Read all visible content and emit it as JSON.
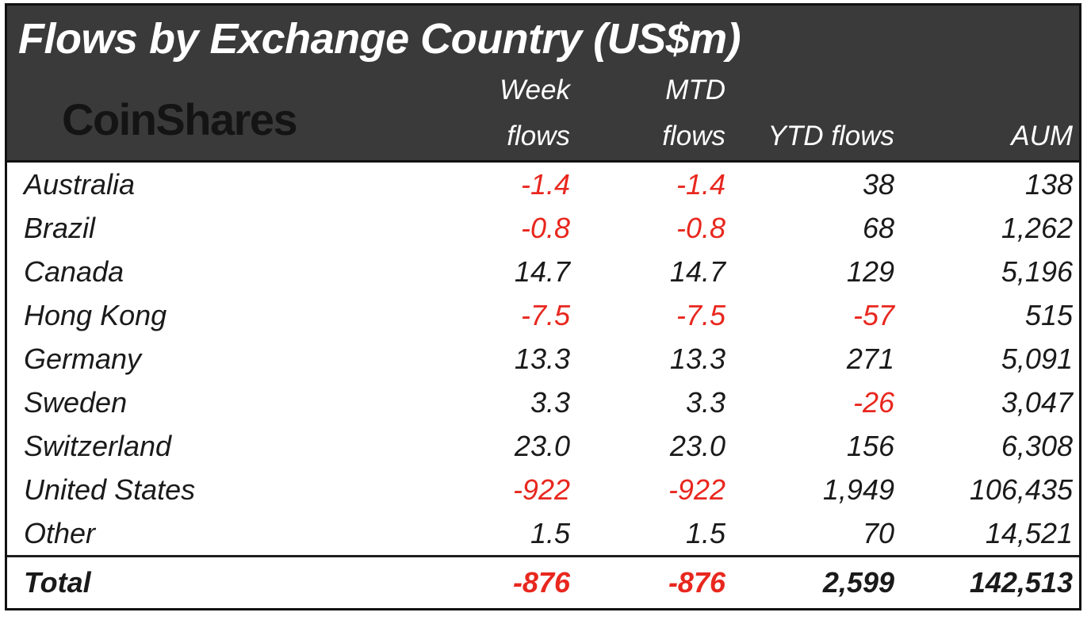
{
  "colors": {
    "header_bg": "#3a3a3a",
    "negative": "#e8271e",
    "text": "#1a1a1a",
    "border": "#111111",
    "header_text": "#ffffff",
    "logo": "#141414"
  },
  "header": {
    "title": "Flows by Exchange Country (US$m)",
    "logo_text": "CoinShares",
    "columns": {
      "week_line1": "Week",
      "week_line2": "flows",
      "mtd_line1": "MTD",
      "mtd_line2": "flows",
      "ytd": "YTD flows",
      "aum": "AUM"
    }
  },
  "table": {
    "rows": [
      {
        "country": "Australia",
        "week": "-1.4",
        "mtd": "-1.4",
        "ytd": "38",
        "aum": "138"
      },
      {
        "country": "Brazil",
        "week": "-0.8",
        "mtd": "-0.8",
        "ytd": "68",
        "aum": "1,262"
      },
      {
        "country": "Canada",
        "week": "14.7",
        "mtd": "14.7",
        "ytd": "129",
        "aum": "5,196"
      },
      {
        "country": "Hong Kong",
        "week": "-7.5",
        "mtd": "-7.5",
        "ytd": "-57",
        "aum": "515"
      },
      {
        "country": "Germany",
        "week": "13.3",
        "mtd": "13.3",
        "ytd": "271",
        "aum": "5,091"
      },
      {
        "country": "Sweden",
        "week": "3.3",
        "mtd": "3.3",
        "ytd": "-26",
        "aum": "3,047"
      },
      {
        "country": "Switzerland",
        "week": "23.0",
        "mtd": "23.0",
        "ytd": "156",
        "aum": "6,308"
      },
      {
        "country": "United States",
        "week": "-922",
        "mtd": "-922",
        "ytd": "1,949",
        "aum": "106,435"
      },
      {
        "country": "Other",
        "week": "1.5",
        "mtd": "1.5",
        "ytd": "70",
        "aum": "14,521"
      }
    ],
    "total": {
      "country": "Total",
      "week": "-876",
      "mtd": "-876",
      "ytd": "2,599",
      "aum": "142,513"
    }
  },
  "chart_data": {
    "type": "table",
    "title": "Flows by Exchange Country (US$m)",
    "source_brand": "CoinShares",
    "columns": [
      "Week flows",
      "MTD flows",
      "YTD flows",
      "AUM"
    ],
    "units": "US$m",
    "rows": [
      {
        "country": "Australia",
        "week_flows": -1.4,
        "mtd_flows": -1.4,
        "ytd_flows": 38,
        "aum": 138
      },
      {
        "country": "Brazil",
        "week_flows": -0.8,
        "mtd_flows": -0.8,
        "ytd_flows": 68,
        "aum": 1262
      },
      {
        "country": "Canada",
        "week_flows": 14.7,
        "mtd_flows": 14.7,
        "ytd_flows": 129,
        "aum": 5196
      },
      {
        "country": "Hong Kong",
        "week_flows": -7.5,
        "mtd_flows": -7.5,
        "ytd_flows": -57,
        "aum": 515
      },
      {
        "country": "Germany",
        "week_flows": 13.3,
        "mtd_flows": 13.3,
        "ytd_flows": 271,
        "aum": 5091
      },
      {
        "country": "Sweden",
        "week_flows": 3.3,
        "mtd_flows": 3.3,
        "ytd_flows": -26,
        "aum": 3047
      },
      {
        "country": "Switzerland",
        "week_flows": 23.0,
        "mtd_flows": 23.0,
        "ytd_flows": 156,
        "aum": 6308
      },
      {
        "country": "United States",
        "week_flows": -922,
        "mtd_flows": -922,
        "ytd_flows": 1949,
        "aum": 106435
      },
      {
        "country": "Other",
        "week_flows": 1.5,
        "mtd_flows": 1.5,
        "ytd_flows": 70,
        "aum": 14521
      }
    ],
    "total": {
      "country": "Total",
      "week_flows": -876,
      "mtd_flows": -876,
      "ytd_flows": 2599,
      "aum": 142513
    },
    "style_notes": "negative values shown in red; dark header band; italic typeface"
  }
}
